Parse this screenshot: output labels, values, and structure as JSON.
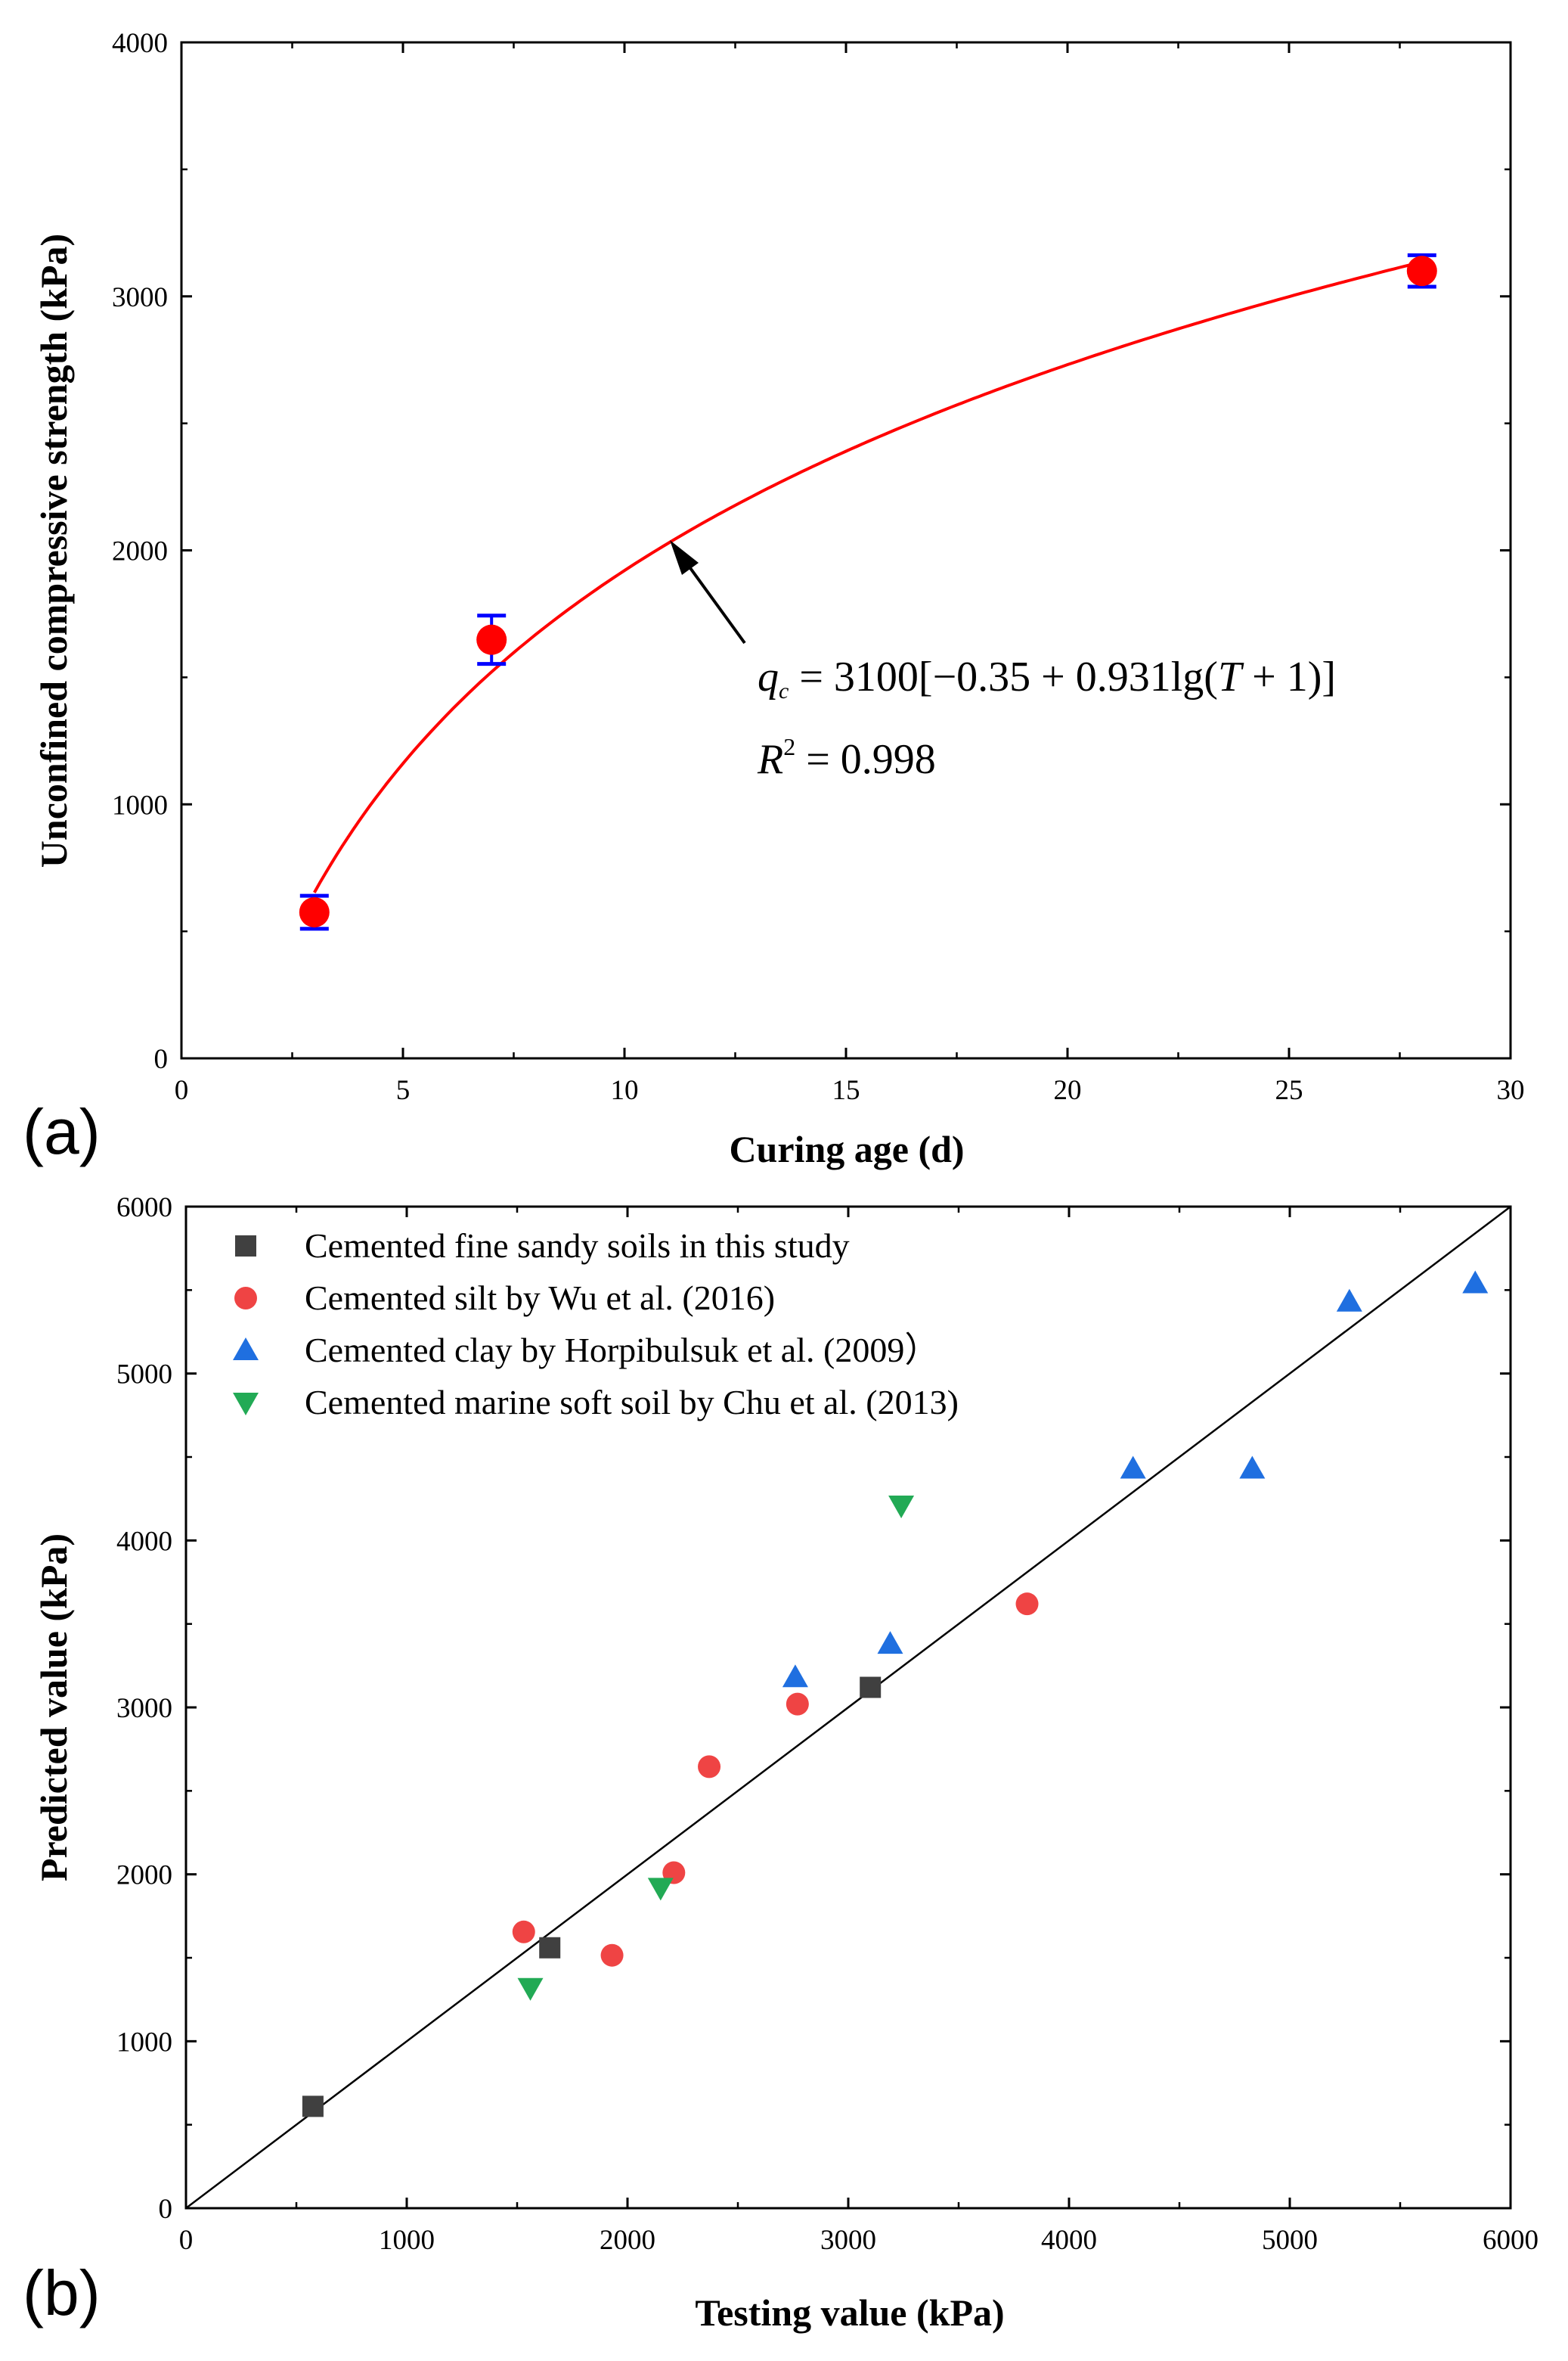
{
  "chart_data": [
    {
      "panel_label": "(a)",
      "type": "scatter",
      "xlabel": "Curing age (d)",
      "ylabel": "Unconfined compressive strength (kPa)",
      "xlim": [
        0,
        30
      ],
      "ylim": [
        0,
        4000
      ],
      "xticks": [
        "0",
        "5",
        "10",
        "15",
        "20",
        "25",
        "30"
      ],
      "yticks": [
        "0",
        "1000",
        "2000",
        "3000",
        "4000"
      ],
      "points": [
        {
          "x": 3,
          "y": 575,
          "err": 65
        },
        {
          "x": 7,
          "y": 1648,
          "err": 95
        },
        {
          "x": 28,
          "y": 3100,
          "err": 62
        }
      ],
      "fit": {
        "A": 3100,
        "a": -0.35,
        "b": 0.931,
        "x_from": 3,
        "x_to": 28,
        "equation": {
          "lhs_sym": "q",
          "lhs_sub": "c",
          "eq": " = 3100",
          "mid": "[−0.35 + 0.931lg(",
          "var": "T",
          "tail": " + 1)]"
        },
        "r2": {
          "sym": "R",
          "sup": "2",
          "value": " = 0.998"
        }
      }
    },
    {
      "panel_label": "(b)",
      "type": "scatter",
      "xlabel": "Testing value (kPa)",
      "ylabel": "Predicted value (kPa)",
      "xlim": [
        0,
        6000
      ],
      "ylim": [
        0,
        6000
      ],
      "xticks": [
        "0",
        "1000",
        "2000",
        "3000",
        "4000",
        "5000",
        "6000"
      ],
      "yticks": [
        "0",
        "1000",
        "2000",
        "3000",
        "4000",
        "5000",
        "6000"
      ],
      "reference_line": {
        "from": [
          0,
          0
        ],
        "to": [
          6000,
          6000
        ]
      },
      "series": [
        {
          "name": "Cemented fine sandy soils in this study",
          "marker": "square",
          "color": "#404040",
          "points": [
            [
              575,
              610
            ],
            [
              1648,
              1560
            ],
            [
              3100,
              3120
            ]
          ]
        },
        {
          "name": "Cemented silt by Wu et al. (2016)",
          "marker": "circle",
          "color": "#ef4444",
          "points": [
            [
              1530,
              1655
            ],
            [
              1930,
              1515
            ],
            [
              2210,
              2010
            ],
            [
              2370,
              2645
            ],
            [
              2770,
              3020
            ],
            [
              3810,
              3620
            ]
          ]
        },
        {
          "name": "Cemented clay by Horpibulsuk et al. (2009）",
          "marker": "triangle-up",
          "color": "#1f6fe0",
          "points": [
            [
              2760,
              3180
            ],
            [
              3190,
              3380
            ],
            [
              4290,
              4430
            ],
            [
              4830,
              4430
            ],
            [
              5270,
              5430
            ],
            [
              5840,
              5540
            ]
          ]
        },
        {
          "name": "Cemented marine soft soil by Chu et al. (2013)",
          "marker": "triangle-down",
          "color": "#22aa55",
          "points": [
            [
              1560,
              1320
            ],
            [
              2150,
              1920
            ],
            [
              3240,
              4210
            ]
          ]
        }
      ]
    }
  ]
}
